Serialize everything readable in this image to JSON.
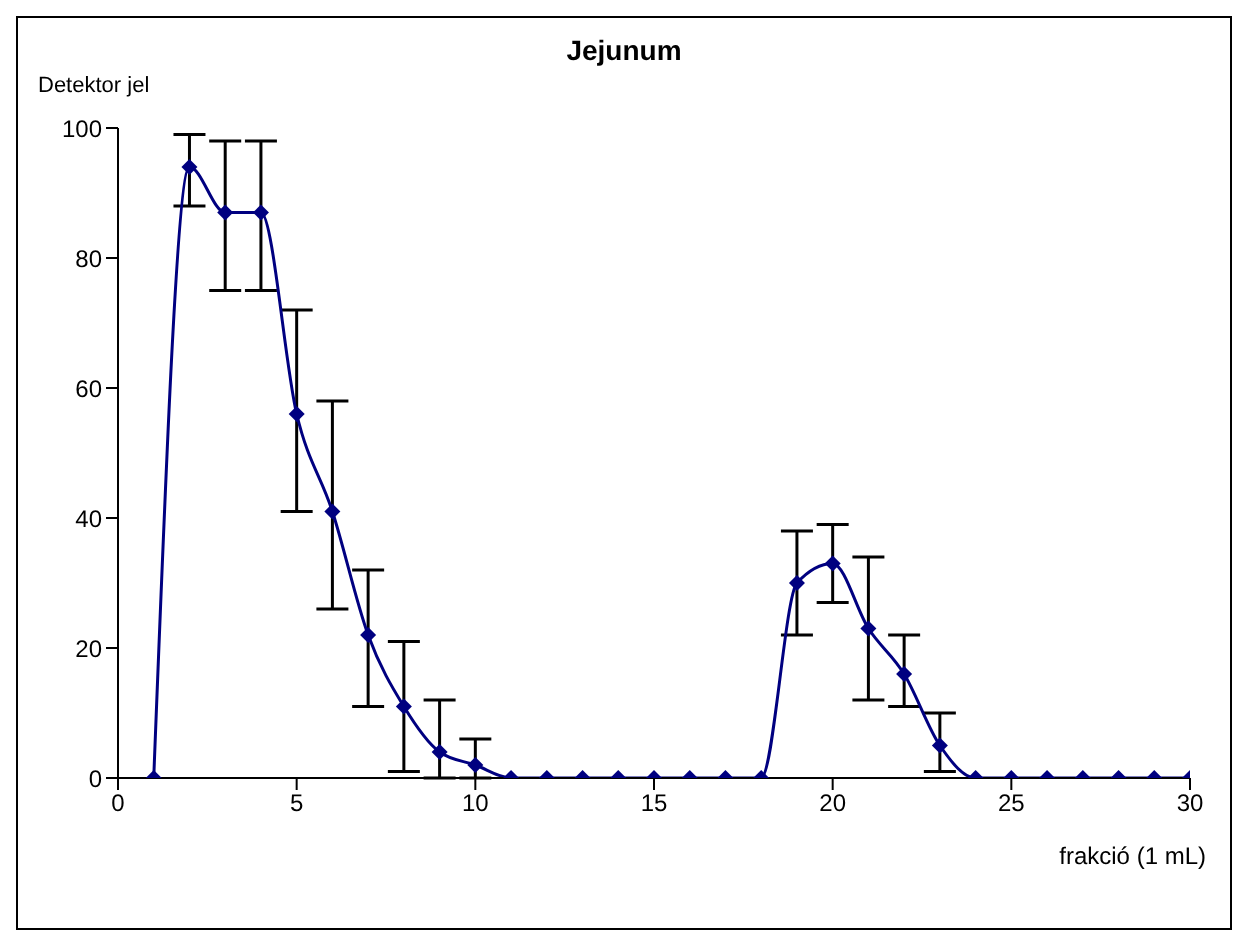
{
  "chart_data": {
    "type": "line",
    "title": "Jejunum",
    "ylabel": "Detektor jel",
    "xlabel": "frakció (1 mL)",
    "x": [
      1,
      2,
      3,
      4,
      5,
      6,
      7,
      8,
      9,
      10,
      11,
      12,
      13,
      14,
      15,
      16,
      17,
      18,
      19,
      20,
      21,
      22,
      23,
      24,
      25,
      26,
      27,
      28,
      29,
      30
    ],
    "series": [
      {
        "color": "#000080",
        "values": [
          0,
          94,
          87,
          87,
          56,
          41,
          22,
          11,
          4,
          2,
          0,
          0,
          0,
          0,
          0,
          0,
          0,
          0,
          30,
          33,
          23,
          16,
          5,
          0,
          0,
          0,
          0,
          0,
          0,
          0
        ],
        "errors": [
          null,
          [
            88,
            99
          ],
          [
            75,
            98
          ],
          [
            75,
            98
          ],
          [
            41,
            72
          ],
          [
            26,
            58
          ],
          [
            11,
            32
          ],
          [
            1,
            21
          ],
          [
            0,
            12
          ],
          [
            0,
            6
          ],
          null,
          null,
          null,
          null,
          null,
          null,
          null,
          null,
          [
            22,
            38
          ],
          [
            27,
            39
          ],
          [
            12,
            34
          ],
          [
            11,
            22
          ],
          [
            1,
            10
          ],
          null,
          null,
          null,
          null,
          null,
          null,
          null
        ]
      }
    ],
    "xlim": [
      0,
      30
    ],
    "xticks": [
      0,
      5,
      10,
      15,
      20,
      25,
      30
    ],
    "ylim": [
      0,
      100
    ],
    "yticks": [
      0,
      20,
      40,
      60,
      80,
      100
    ],
    "marker": "diamond",
    "line_style": "solid",
    "grid": false,
    "legend": false
  }
}
